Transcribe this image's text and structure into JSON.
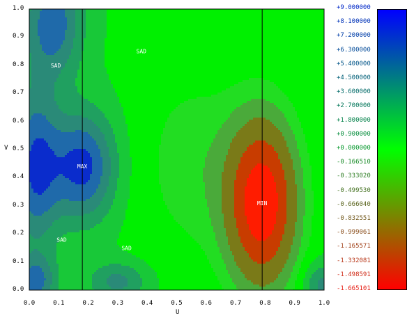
{
  "chart_data": {
    "type": "heatmap",
    "xlabel": "U",
    "ylabel": "V",
    "xlim": [
      0.0,
      1.0
    ],
    "ylim": [
      0.0,
      1.0
    ],
    "x_ticks": [
      "0.0",
      "0.1",
      "0.2",
      "0.3",
      "0.4",
      "0.5",
      "0.6",
      "0.7",
      "0.8",
      "0.9",
      "1.0"
    ],
    "y_ticks": [
      "0.0",
      "0.1",
      "0.2",
      "0.3",
      "0.4",
      "0.5",
      "0.6",
      "0.7",
      "0.8",
      "0.9",
      "1.0"
    ],
    "colorbar_labels": [
      "+9.000000",
      "+8.100000",
      "+7.200000",
      "+6.300000",
      "+5.400000",
      "+4.500000",
      "+3.600000",
      "+2.700000",
      "+1.800000",
      "+0.900000",
      "+0.000000",
      "-0.166510",
      "-0.333020",
      "-0.499530",
      "-0.666040",
      "-0.832551",
      "-0.999061",
      "-1.165571",
      "-1.332081",
      "-1.498591",
      "-1.665101"
    ],
    "colorbar_colors": {
      "top": "#0000ff",
      "middle": "#00ff00",
      "bottom": "#ff0000"
    },
    "critical_points": [
      {
        "label": "MAX",
        "u": 0.18,
        "v": 0.44
      },
      {
        "label": "MIN",
        "u": 0.79,
        "v": 0.31
      },
      {
        "label": "SAD",
        "u": 0.09,
        "v": 0.8
      },
      {
        "label": "SAD",
        "u": 0.38,
        "v": 0.85
      },
      {
        "label": "SAD",
        "u": 0.11,
        "v": 0.18
      },
      {
        "label": "SAD",
        "u": 0.33,
        "v": 0.15
      }
    ],
    "level_colors": [
      "#ff1c00",
      "#c83c00",
      "#7a7a18",
      "#4aaa3a",
      "#22dd22",
      "#00f000",
      "#18c838",
      "#20a060",
      "#2a8a78",
      "#1f6aaa",
      "#0a2ccc"
    ],
    "vertical_lines_u": [
      0.18,
      0.79
    ],
    "grid": false
  }
}
